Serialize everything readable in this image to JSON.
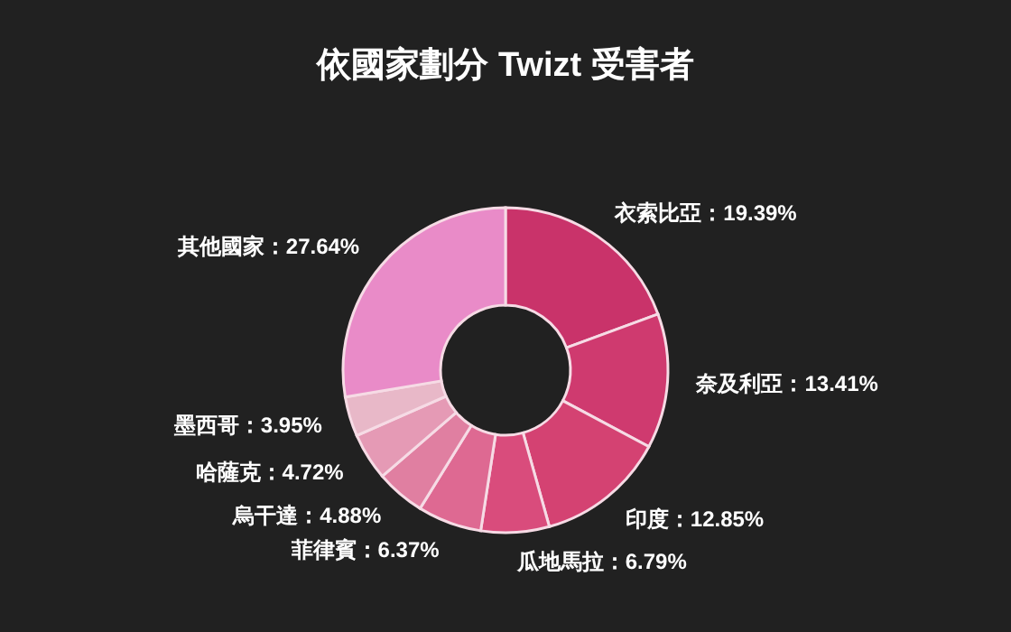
{
  "chart_data": {
    "type": "donut",
    "title": "依國家劃分 Twizt 受害者",
    "categories": [
      "衣索比亞",
      "奈及利亞",
      "印度",
      "瓜地馬拉",
      "菲律賓",
      "烏干達",
      "哈薩克",
      "墨西哥",
      "其他國家"
    ],
    "values": [
      19.39,
      13.41,
      12.85,
      6.79,
      6.37,
      4.88,
      4.72,
      3.95,
      27.64
    ],
    "value_labels": [
      "19.39%",
      "13.41%",
      "12.85%",
      "6.79%",
      "6.37%",
      "4.88%",
      "4.72%",
      "3.95%",
      "27.64%"
    ],
    "colors": [
      "#c9336a",
      "#cf3a6f",
      "#d44272",
      "#d94c7c",
      "#de6992",
      "#e07fa1",
      "#e59ab5",
      "#e8b8c8",
      "#e98bc8"
    ],
    "legend": false
  }
}
